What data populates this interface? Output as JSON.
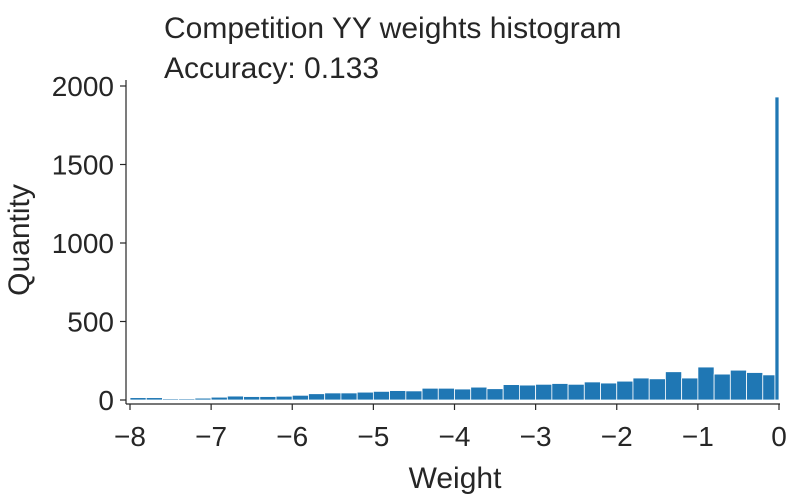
{
  "chart_data": {
    "type": "bar",
    "title": "Competition YY weights histogram",
    "subtitle": "Accuracy: 0.133",
    "xlabel": "Weight",
    "ylabel": "Quantity",
    "xlim": [
      -8,
      0
    ],
    "ylim": [
      0,
      2000
    ],
    "xticks": [
      -8,
      -7,
      -6,
      -5,
      -4,
      -3,
      -2,
      -1,
      0
    ],
    "xtick_labels": [
      "−8",
      "−7",
      "−6",
      "−5",
      "−4",
      "−3",
      "−2",
      "−1",
      "0"
    ],
    "yticks": [
      0,
      500,
      1000,
      1500,
      2000
    ],
    "ytick_labels": [
      "0",
      "500",
      "1000",
      "1500",
      "2000"
    ],
    "grid": false,
    "bar_color": "#1f77b4",
    "bin_width": 0.2,
    "bins_start": [
      -8.0,
      -7.8,
      -7.6,
      -7.4,
      -7.2,
      -7.0,
      -6.8,
      -6.6,
      -6.4,
      -6.2,
      -6.0,
      -5.8,
      -5.6,
      -5.4,
      -5.2,
      -5.0,
      -4.8,
      -4.6,
      -4.4,
      -4.2,
      -4.0,
      -3.8,
      -3.6,
      -3.4,
      -3.2,
      -3.0,
      -2.8,
      -2.6,
      -2.4,
      -2.2,
      -2.0,
      -1.8,
      -1.6,
      -1.4,
      -1.2,
      -1.0,
      -0.8,
      -0.6,
      -0.4,
      -0.2,
      -0.05
    ],
    "bins_end": [
      -7.8,
      -7.6,
      -7.4,
      -7.2,
      -7.0,
      -6.8,
      -6.6,
      -6.4,
      -6.2,
      -6.0,
      -5.8,
      -5.6,
      -5.4,
      -5.2,
      -5.0,
      -4.8,
      -4.6,
      -4.4,
      -4.2,
      -4.0,
      -3.8,
      -3.6,
      -3.4,
      -3.2,
      -3.0,
      -2.8,
      -2.6,
      -2.4,
      -2.2,
      -2.0,
      -1.8,
      -1.6,
      -1.4,
      -1.2,
      -1.0,
      -0.8,
      -0.6,
      -0.4,
      -0.2,
      -0.05,
      0.0
    ],
    "values": [
      15,
      15,
      8,
      8,
      12,
      18,
      25,
      22,
      22,
      24,
      30,
      40,
      45,
      45,
      50,
      55,
      60,
      58,
      75,
      75,
      70,
      82,
      72,
      98,
      95,
      100,
      105,
      100,
      115,
      108,
      120,
      140,
      135,
      180,
      140,
      210,
      165,
      190,
      175,
      160,
      1930
    ]
  }
}
